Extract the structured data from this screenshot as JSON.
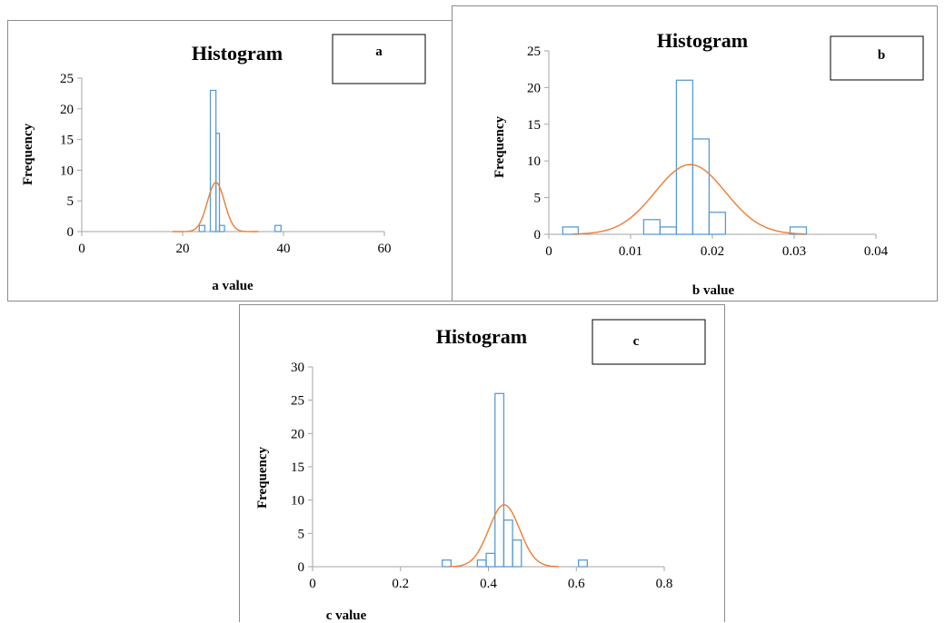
{
  "chart_data": [
    {
      "type": "bar",
      "panel_tag": "a",
      "title": "Histogram",
      "xlabel": "a value",
      "ylabel": "Frequency",
      "xlim": [
        0,
        60
      ],
      "ylim": [
        0,
        25
      ],
      "xticks": [
        0,
        20,
        40,
        60
      ],
      "yticks": [
        0,
        5,
        10,
        15,
        20,
        25
      ],
      "grid": false,
      "bar_color": "#5b9bd5",
      "curve_color": "#ed7d31",
      "bins": [
        {
          "x0": 23.3,
          "x1": 24.4,
          "value": 1
        },
        {
          "x0": 24.4,
          "x1": 25.5,
          "value": 0
        },
        {
          "x0": 25.5,
          "x1": 26.6,
          "value": 23
        },
        {
          "x0": 26.6,
          "x1": 27.3,
          "value": 16
        },
        {
          "x0": 27.3,
          "x1": 28.3,
          "value": 1
        },
        {
          "x0": 38.3,
          "x1": 39.5,
          "value": 1
        }
      ],
      "normal_curve": {
        "mean": 26.6,
        "sd": 1.7,
        "peak": 8,
        "range": [
          18,
          35
        ]
      }
    },
    {
      "type": "bar",
      "panel_tag": "b",
      "title": "Histogram",
      "xlabel": "b value",
      "ylabel": "Frequency",
      "xlim": [
        0,
        0.04
      ],
      "ylim": [
        0,
        25
      ],
      "xticks": [
        0,
        0.01,
        0.02,
        0.03,
        0.04
      ],
      "yticks": [
        0,
        5,
        10,
        15,
        20,
        25
      ],
      "grid": false,
      "bar_color": "#5b9bd5",
      "curve_color": "#ed7d31",
      "bins": [
        {
          "x0": 0.0017,
          "x1": 0.0036,
          "value": 1
        },
        {
          "x0": 0.0116,
          "x1": 0.0136,
          "value": 2
        },
        {
          "x0": 0.0136,
          "x1": 0.0156,
          "value": 1
        },
        {
          "x0": 0.0156,
          "x1": 0.0176,
          "value": 21
        },
        {
          "x0": 0.0176,
          "x1": 0.0196,
          "value": 13
        },
        {
          "x0": 0.0196,
          "x1": 0.0216,
          "value": 3
        },
        {
          "x0": 0.0295,
          "x1": 0.0315,
          "value": 1
        }
      ],
      "normal_curve": {
        "mean": 0.0173,
        "sd": 0.0043,
        "peak": 9.5,
        "range": [
          0.003,
          0.0315
        ]
      }
    },
    {
      "type": "bar",
      "panel_tag": "c",
      "title": "Histogram",
      "xlabel": "c value",
      "ylabel": "Frequency",
      "xlim": [
        0,
        0.8
      ],
      "ylim": [
        0,
        30
      ],
      "xticks": [
        "0",
        "0.2",
        "0.4",
        "0.6",
        "0.8"
      ],
      "yticks": [
        0,
        5,
        10,
        15,
        20,
        25,
        30
      ],
      "grid": false,
      "bar_color": "#5b9bd5",
      "curve_color": "#ed7d31",
      "bins": [
        {
          "x0": 0.295,
          "x1": 0.315,
          "value": 1
        },
        {
          "x0": 0.375,
          "x1": 0.395,
          "value": 1
        },
        {
          "x0": 0.395,
          "x1": 0.415,
          "value": 2
        },
        {
          "x0": 0.415,
          "x1": 0.435,
          "value": 26
        },
        {
          "x0": 0.435,
          "x1": 0.455,
          "value": 7
        },
        {
          "x0": 0.455,
          "x1": 0.475,
          "value": 4
        },
        {
          "x0": 0.605,
          "x1": 0.625,
          "value": 1
        }
      ],
      "normal_curve": {
        "mean": 0.436,
        "sd": 0.035,
        "peak": 9.3,
        "range": [
          0.31,
          0.56
        ]
      }
    }
  ]
}
